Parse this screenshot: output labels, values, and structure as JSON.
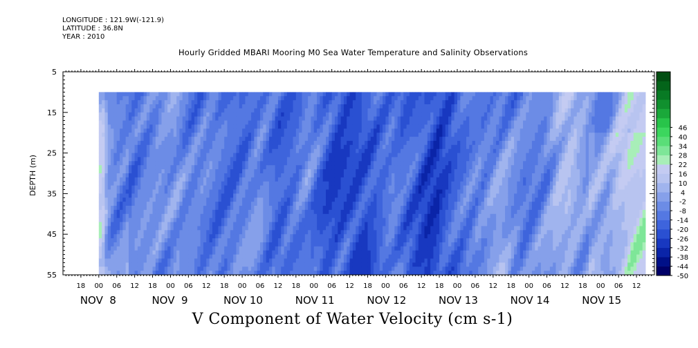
{
  "header": {
    "longitude": "LONGITUDE : 121.9W(-121.9)",
    "latitude": "LATITUDE : 36.8N",
    "year": "YEAR : 2010",
    "title": "Hourly Gridded MBARI Mooring M0 Sea Water Temperature and Salinity Observations"
  },
  "chart_data": {
    "type": "heatmap",
    "title": "Hourly Gridded MBARI Mooring M0 Sea Water Temperature and Salinity Observations",
    "xlabel": "V Component of Water Velocity (cm s-1)",
    "ylabel": "DEPTH (m)",
    "y_reversed": true,
    "ylim": [
      55,
      5
    ],
    "y_ticks": [
      "5",
      "15",
      "25",
      "35",
      "45",
      "55"
    ],
    "data_depth_range": [
      10,
      55
    ],
    "x_hour_ticks": [
      "18",
      "00",
      "06",
      "12",
      "18",
      "00",
      "06",
      "12",
      "18",
      "00",
      "06",
      "12",
      "18",
      "00",
      "06",
      "12",
      "18",
      "00",
      "06",
      "12",
      "18",
      "00",
      "06",
      "12",
      "18",
      "00",
      "06",
      "12",
      "18",
      "00",
      "06",
      "12"
    ],
    "x_day_labels": [
      "NOV  8",
      "NOV  9",
      "NOV 10",
      "NOV 11",
      "NOV 12",
      "NOV 13",
      "NOV 14",
      "NOV 15"
    ],
    "time_range": [
      "NOV 7 12:00",
      "NOV 15 18:00"
    ],
    "data_time_range": [
      "NOV 8 00:00",
      "NOV 15 15:00"
    ],
    "colorbar": {
      "levels": [
        "46",
        "40",
        "34",
        "28",
        "22",
        "16",
        "10",
        "4",
        "-2",
        "-8",
        "-14",
        "-20",
        "-26",
        "-32",
        "-38",
        "-44",
        "-50"
      ],
      "min": -50,
      "max": 52,
      "step": 6,
      "colors": [
        "#000068",
        "#001088",
        "#0a24a8",
        "#1838c0",
        "#2a50d2",
        "#3e64dc",
        "#5478e2",
        "#6c8ce6",
        "#86a0ea",
        "#a0b4ee",
        "#b8c4f0",
        "#c4cbf2",
        "#a8eeb8",
        "#7ee698",
        "#5ade78",
        "#3cd65e",
        "#28c44a",
        "#1aa83a",
        "#10902e",
        "#087a24",
        "#04641a",
        "#024e12"
      ]
    },
    "field_description": "Alternating bands of southward (blue, down to about -30) and northward (green, up to about +25) flow; strongest green near NOV 15 06, strongest blue near NOV 11 18 and NOV 12 12."
  }
}
